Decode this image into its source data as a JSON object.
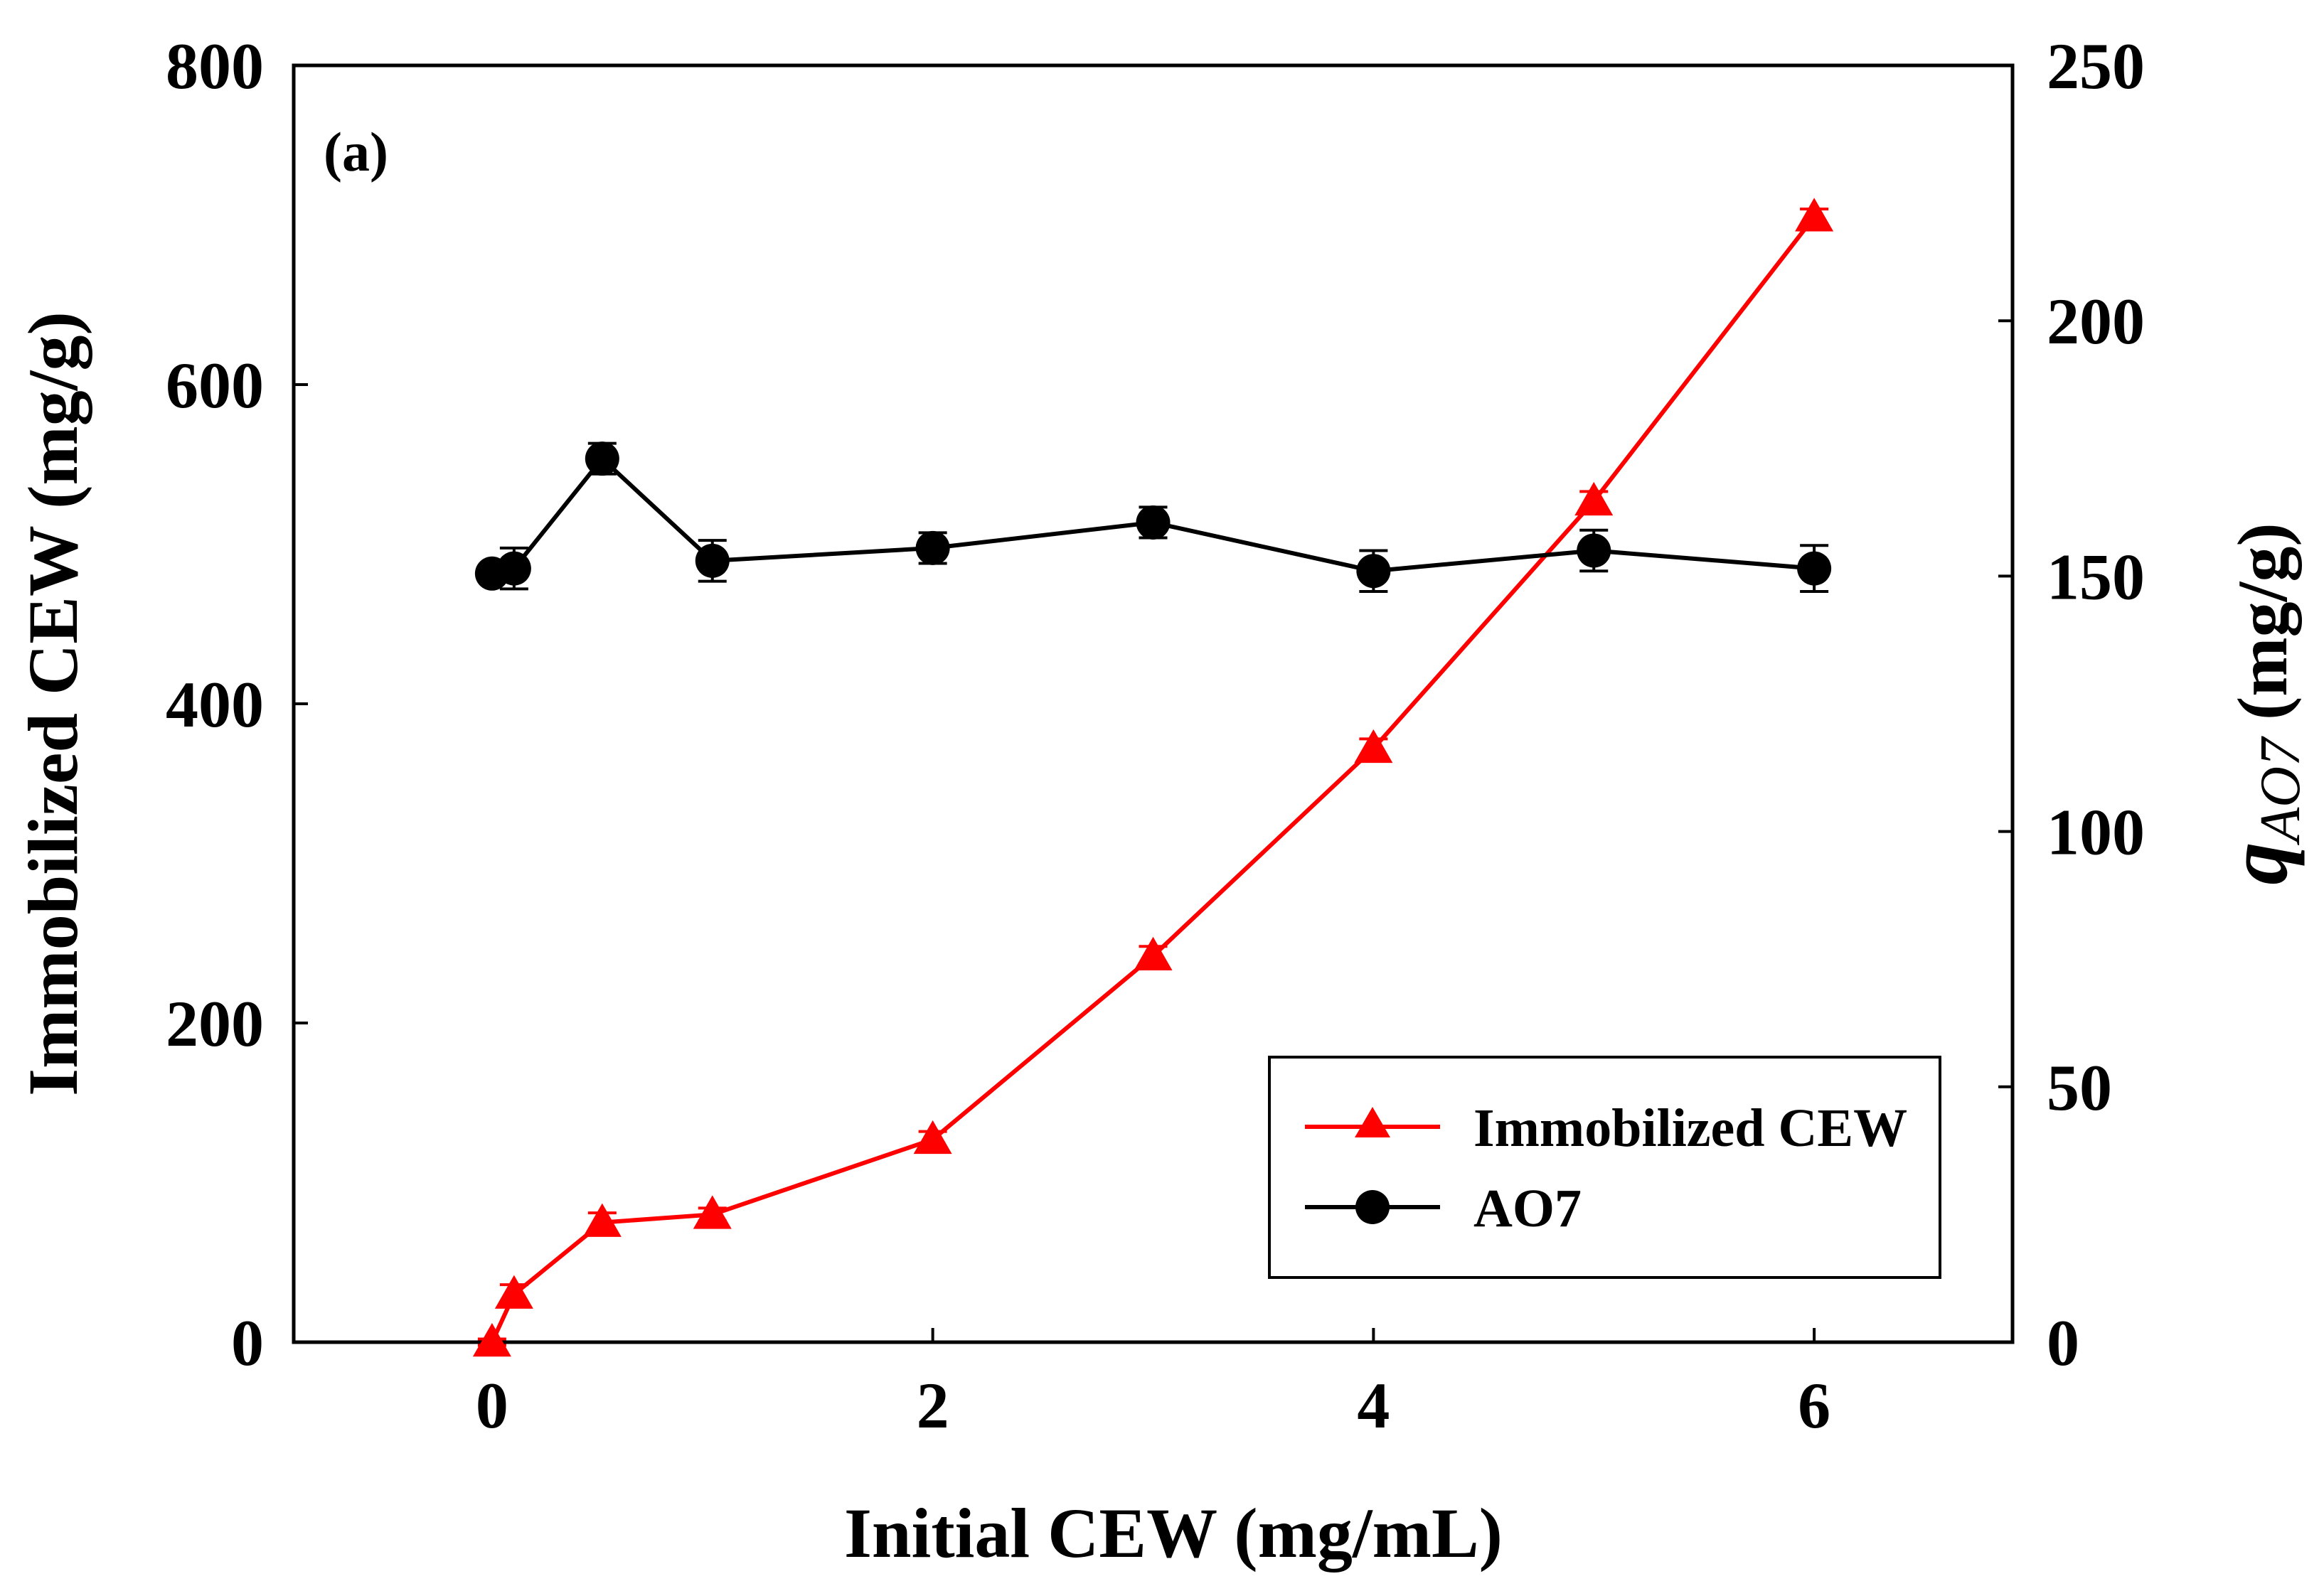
{
  "chart_data": {
    "type": "line",
    "panel_label": "(a)",
    "xlabel": "Initial CEW (mg/mL)",
    "ylabel_left": "Immobilized CEW  (mg/g)",
    "ylabel_right_symbol": "q",
    "ylabel_right_subscript": "AO7",
    "ylabel_right_unit": " (mg/g)",
    "xlim": [
      -0.9,
      6.9
    ],
    "ylim_left": [
      0,
      800
    ],
    "ylim_right": [
      0,
      250
    ],
    "x_ticks": [
      "0",
      "2",
      "4",
      "6"
    ],
    "y_left_ticks": [
      "0",
      "200",
      "400",
      "600",
      "800"
    ],
    "y_right_ticks": [
      "0",
      "50",
      "100",
      "150",
      "200",
      "250"
    ],
    "grid": false,
    "legend_position": "bottom-right",
    "series": [
      {
        "name": "Immobilized CEW",
        "axis": "left",
        "color": "#ff0000",
        "marker": "triangle",
        "x": [
          0,
          0.1,
          0.5,
          1,
          2,
          3,
          4,
          5,
          6
        ],
        "y": [
          0,
          30,
          75,
          80,
          127,
          242,
          372,
          527,
          705
        ],
        "err": [
          2,
          6,
          6,
          4,
          5,
          6,
          6,
          6,
          5
        ]
      },
      {
        "name": "AO7",
        "axis": "right",
        "color": "#000000",
        "marker": "circle",
        "x": [
          0,
          0.1,
          0.5,
          1,
          2,
          3,
          4,
          5,
          6
        ],
        "y": [
          150.5,
          151.5,
          173,
          153,
          155.5,
          160.5,
          151,
          155,
          151.5
        ],
        "err": [
          1.5,
          4,
          3,
          4,
          3,
          3,
          4,
          4,
          4.5
        ]
      }
    ]
  }
}
